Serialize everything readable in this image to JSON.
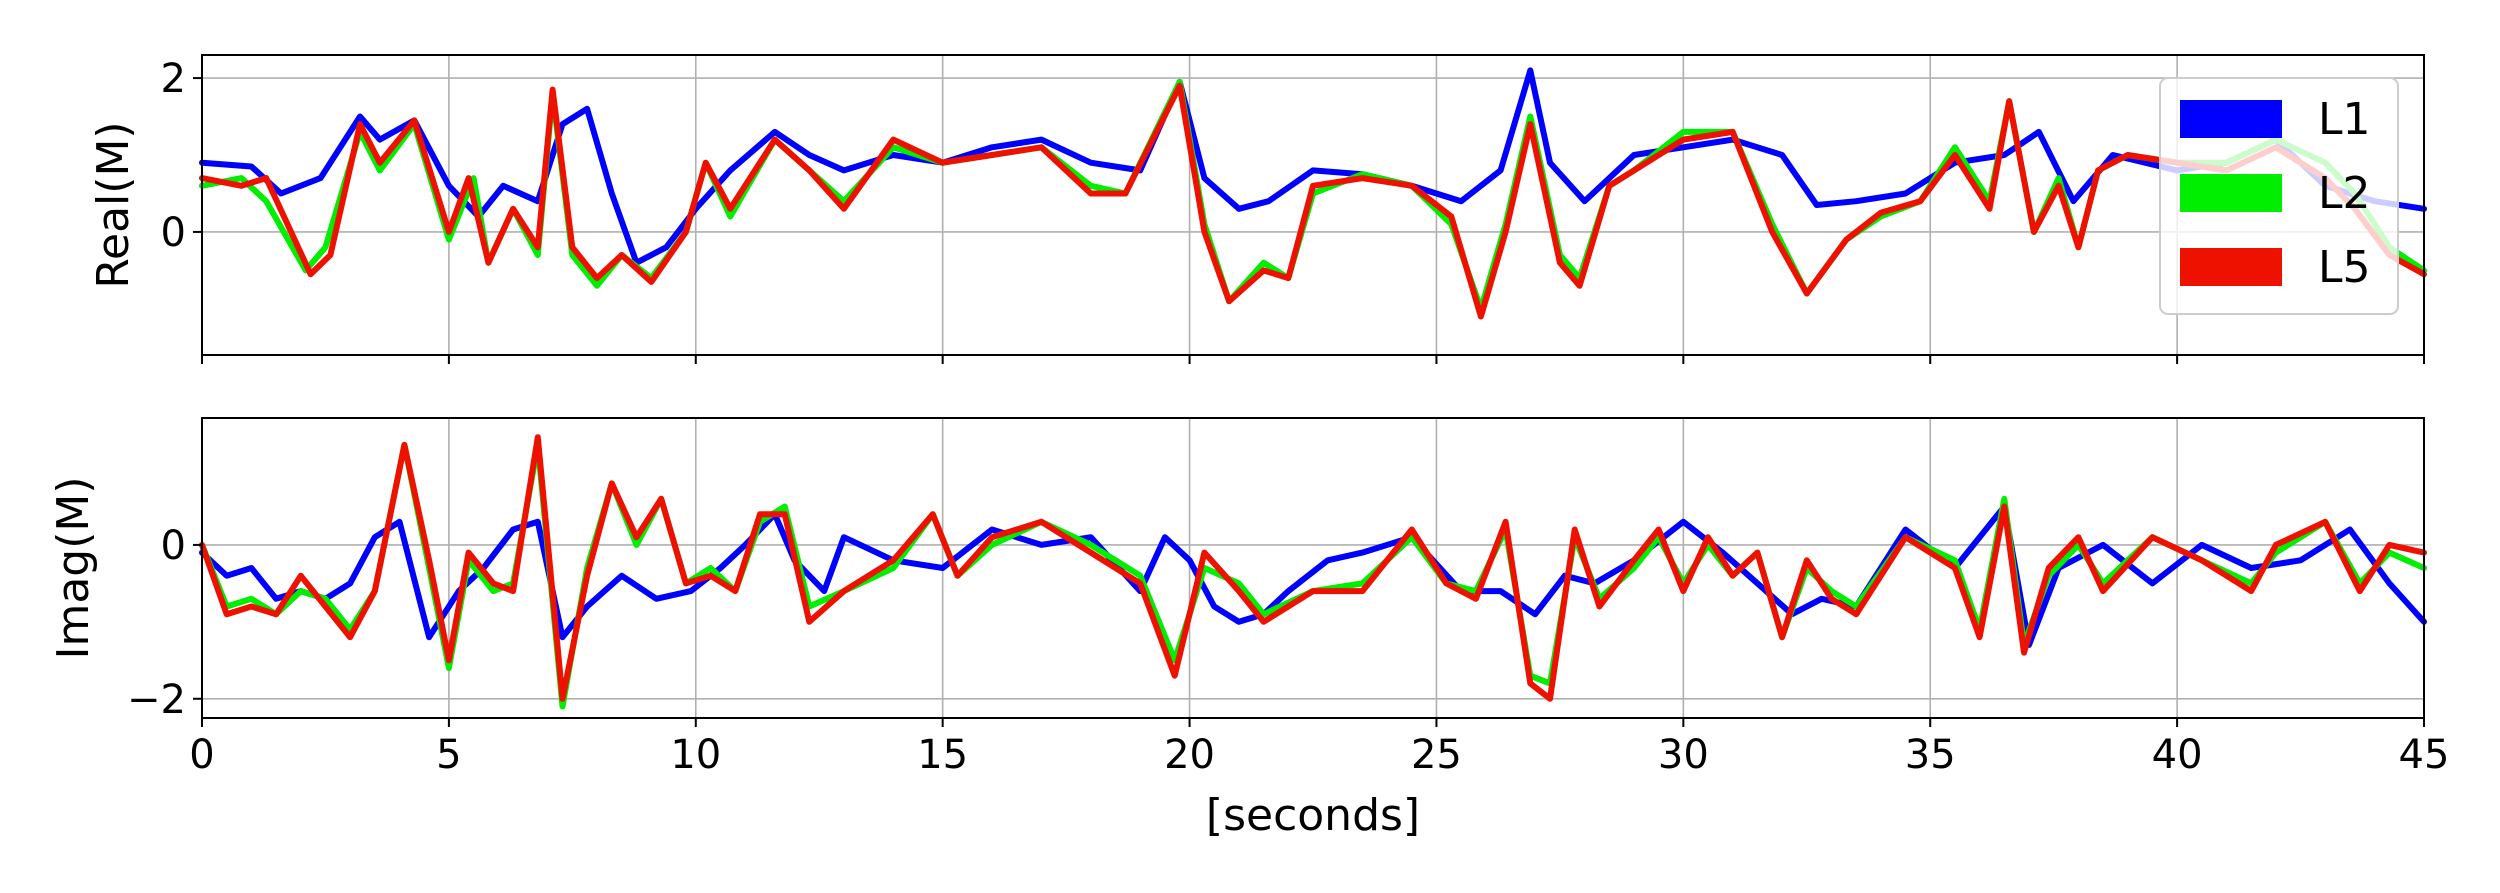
{
  "figure": {
    "xlabel": "[seconds]",
    "legend": {
      "location": "top-right",
      "entries": [
        {
          "label": "L1",
          "color": "#0000ff"
        },
        {
          "label": "L2",
          "color": "#00ee00"
        },
        {
          "label": "L5",
          "color": "#ee1100"
        }
      ]
    }
  },
  "chart_data": [
    {
      "type": "line",
      "ylabel": "Real(M)",
      "xlabel": "",
      "xlim": [
        0,
        45
      ],
      "ylim": [
        -1.6,
        2.3
      ],
      "xticks": [
        0,
        5,
        10,
        15,
        20,
        25,
        30,
        35,
        40,
        45
      ],
      "xtick_labels": [],
      "yticks": [
        0,
        2
      ],
      "ytick_labels": [
        "0",
        "2"
      ],
      "grid": true,
      "series": [
        {
          "name": "L1",
          "color": "#0000ff",
          "x": [
            0,
            1,
            1.6,
            2.4,
            3.2,
            3.6,
            4.3,
            5.0,
            5.6,
            6.1,
            6.8,
            7.3,
            7.8,
            8.3,
            8.8,
            9.4,
            10.0,
            10.7,
            11.6,
            12.3,
            13.0,
            14.0,
            15.0,
            16.0,
            17.0,
            18.0,
            19.0,
            19.8,
            20.3,
            21.0,
            21.6,
            22.5,
            23.5,
            24.5,
            25.5,
            26.3,
            26.9,
            27.3,
            28.0,
            29.0,
            30.0,
            31.0,
            32.0,
            32.7,
            33.5,
            34.5,
            35.5,
            36.5,
            37.2,
            37.9,
            38.7,
            40.0,
            41.0,
            42.0,
            43.0,
            44.0,
            45.0
          ],
          "y": [
            0.9,
            0.85,
            0.5,
            0.7,
            1.5,
            1.2,
            1.45,
            0.6,
            0.2,
            0.6,
            0.4,
            1.4,
            1.6,
            0.5,
            -0.4,
            -0.2,
            0.3,
            0.8,
            1.3,
            1.0,
            0.8,
            1.0,
            0.9,
            1.1,
            1.2,
            0.9,
            0.8,
            1.95,
            0.7,
            0.3,
            0.4,
            0.8,
            0.75,
            0.6,
            0.4,
            0.8,
            2.1,
            0.9,
            0.4,
            1.0,
            1.1,
            1.2,
            1.0,
            0.35,
            0.4,
            0.5,
            0.9,
            1.0,
            1.3,
            0.4,
            1.0,
            0.8,
            0.9,
            1.2,
            0.6,
            0.4,
            0.3
          ]
        },
        {
          "name": "L2",
          "color": "#00ee00",
          "x": [
            0,
            0.8,
            1.3,
            2.1,
            2.5,
            3.2,
            3.6,
            4.3,
            5.0,
            5.5,
            5.8,
            6.3,
            6.8,
            7.1,
            7.5,
            8.0,
            8.5,
            9.1,
            9.8,
            10.2,
            10.7,
            11.6,
            12.3,
            13.0,
            14.0,
            15.0,
            16.0,
            17.0,
            18.0,
            18.7,
            19.8,
            20.3,
            20.8,
            21.5,
            22.0,
            22.5,
            23.5,
            24.5,
            25.3,
            25.9,
            26.4,
            26.9,
            27.5,
            27.9,
            28.5,
            29.0,
            30.0,
            31.0,
            31.8,
            32.5,
            33.3,
            34.0,
            34.8,
            35.5,
            36.2,
            36.6,
            37.1,
            37.6,
            38.0,
            38.4,
            39.0,
            40.0,
            41.0,
            42.0,
            43.0,
            43.6,
            44.3,
            45.0
          ],
          "y": [
            0.6,
            0.7,
            0.4,
            -0.5,
            -0.2,
            1.3,
            0.8,
            1.4,
            -0.1,
            0.7,
            -0.4,
            0.3,
            -0.3,
            1.8,
            -0.3,
            -0.7,
            -0.3,
            -0.6,
            0.0,
            0.9,
            0.2,
            1.2,
            0.8,
            0.4,
            1.1,
            0.9,
            1.0,
            1.1,
            0.6,
            0.5,
            1.95,
            0.1,
            -0.9,
            -0.4,
            -0.6,
            0.5,
            0.75,
            0.6,
            0.1,
            -1.0,
            0.1,
            1.5,
            -0.3,
            -0.6,
            0.6,
            0.8,
            1.3,
            1.3,
            0.1,
            -0.8,
            -0.1,
            0.2,
            0.4,
            1.1,
            0.4,
            1.7,
            0.0,
            0.7,
            -0.2,
            0.8,
            1.0,
            0.9,
            0.9,
            1.2,
            0.9,
            0.5,
            -0.2,
            -0.5
          ]
        },
        {
          "name": "L5",
          "color": "#ee1100",
          "x": [
            0,
            0.8,
            1.3,
            2.2,
            2.6,
            3.2,
            3.6,
            4.3,
            5.0,
            5.4,
            5.8,
            6.3,
            6.8,
            7.1,
            7.5,
            8.0,
            8.5,
            9.1,
            9.8,
            10.2,
            10.7,
            11.6,
            12.3,
            13.0,
            14.0,
            15.0,
            16.0,
            17.0,
            18.0,
            18.7,
            19.8,
            20.3,
            20.8,
            21.5,
            22.0,
            22.5,
            23.5,
            24.5,
            25.3,
            25.9,
            26.4,
            26.9,
            27.5,
            27.9,
            28.5,
            29.0,
            30.0,
            31.0,
            31.8,
            32.5,
            33.3,
            34.0,
            34.8,
            35.5,
            36.2,
            36.6,
            37.1,
            37.6,
            38.0,
            38.4,
            39.0,
            40.0,
            41.0,
            42.0,
            43.0,
            43.6,
            44.3,
            45.0
          ],
          "y": [
            0.7,
            0.6,
            0.7,
            -0.55,
            -0.3,
            1.4,
            0.9,
            1.45,
            0.0,
            0.7,
            -0.4,
            0.3,
            -0.2,
            1.85,
            -0.2,
            -0.6,
            -0.3,
            -0.65,
            0.0,
            0.9,
            0.3,
            1.2,
            0.8,
            0.3,
            1.2,
            0.9,
            1.0,
            1.1,
            0.5,
            0.5,
            1.9,
            0.0,
            -0.9,
            -0.5,
            -0.6,
            0.6,
            0.7,
            0.6,
            0.2,
            -1.1,
            0.0,
            1.4,
            -0.4,
            -0.7,
            0.6,
            0.8,
            1.2,
            1.3,
            0.0,
            -0.8,
            -0.1,
            0.25,
            0.4,
            1.0,
            0.3,
            1.7,
            0.0,
            0.6,
            -0.2,
            0.8,
            1.0,
            0.9,
            0.8,
            1.1,
            0.7,
            0.3,
            -0.3,
            -0.55
          ]
        }
      ]
    },
    {
      "type": "line",
      "ylabel": "Imag(M)",
      "xlabel": "[seconds]",
      "xlim": [
        0,
        45
      ],
      "ylim": [
        -2.25,
        1.65
      ],
      "xticks": [
        0,
        5,
        10,
        15,
        20,
        25,
        30,
        35,
        40,
        45
      ],
      "xtick_labels": [
        "0",
        "5",
        "10",
        "15",
        "20",
        "25",
        "30",
        "35",
        "40",
        "45"
      ],
      "yticks": [
        -2,
        0
      ],
      "ytick_labels": [
        "−2",
        "0"
      ],
      "grid": true,
      "series": [
        {
          "name": "L1",
          "color": "#0000ff",
          "x": [
            0,
            0.5,
            1.0,
            1.5,
            2.0,
            2.5,
            3.0,
            3.5,
            4.0,
            4.6,
            5.2,
            5.7,
            6.3,
            6.8,
            7.3,
            7.8,
            8.5,
            9.2,
            9.9,
            10.5,
            11.0,
            11.6,
            12.0,
            12.6,
            13.0,
            14.0,
            15.0,
            16.0,
            17.0,
            18.0,
            19.0,
            19.5,
            20.0,
            20.5,
            21.0,
            21.5,
            22.0,
            22.8,
            23.5,
            24.5,
            25.5,
            26.3,
            27.0,
            27.6,
            28.2,
            29.0,
            30.0,
            30.8,
            31.5,
            32.2,
            32.8,
            33.5,
            34.5,
            35.5,
            36.5,
            37.0,
            37.6,
            38.5,
            39.5,
            40.5,
            41.5,
            42.5,
            43.5,
            44.3,
            45.0
          ],
          "y": [
            -0.1,
            -0.4,
            -0.3,
            -0.7,
            -0.6,
            -0.7,
            -0.5,
            0.1,
            0.3,
            -1.2,
            -0.6,
            -0.3,
            0.2,
            0.3,
            -1.2,
            -0.8,
            -0.4,
            -0.7,
            -0.6,
            -0.3,
            0.0,
            0.4,
            -0.2,
            -0.6,
            0.1,
            -0.2,
            -0.3,
            0.2,
            0.0,
            0.1,
            -0.6,
            0.1,
            -0.2,
            -0.8,
            -1.0,
            -0.9,
            -0.6,
            -0.2,
            -0.1,
            0.1,
            -0.6,
            -0.6,
            -0.9,
            -0.4,
            -0.5,
            -0.2,
            0.3,
            -0.1,
            -0.5,
            -0.9,
            -0.7,
            -0.8,
            0.2,
            -0.3,
            0.5,
            -1.3,
            -0.3,
            0.0,
            -0.5,
            0.0,
            -0.3,
            -0.2,
            0.2,
            -0.5,
            -1.0
          ]
        },
        {
          "name": "L2",
          "color": "#00ee00",
          "x": [
            0,
            0.5,
            1.0,
            1.5,
            2.0,
            2.5,
            3.0,
            3.5,
            4.1,
            4.6,
            5.0,
            5.4,
            5.9,
            6.3,
            6.8,
            7.3,
            7.8,
            8.3,
            8.8,
            9.3,
            9.8,
            10.3,
            10.8,
            11.3,
            11.8,
            12.3,
            13.0,
            14.0,
            14.8,
            15.3,
            16.0,
            17.0,
            18.0,
            19.0,
            19.7,
            20.3,
            21.0,
            21.5,
            22.5,
            23.5,
            24.5,
            25.2,
            25.8,
            26.4,
            26.9,
            27.3,
            27.8,
            28.3,
            29.0,
            29.5,
            30.0,
            30.5,
            31.0,
            31.5,
            32.0,
            32.5,
            33.0,
            33.5,
            34.5,
            35.5,
            36.0,
            36.5,
            36.9,
            37.4,
            38.0,
            38.5,
            39.5,
            40.5,
            41.5,
            42.0,
            43.0,
            43.7,
            44.3,
            45.0
          ],
          "y": [
            0.0,
            -0.8,
            -0.7,
            -0.9,
            -0.6,
            -0.7,
            -1.1,
            -0.6,
            1.3,
            -0.3,
            -1.6,
            -0.2,
            -0.6,
            -0.5,
            1.3,
            -2.1,
            -0.3,
            0.8,
            0.0,
            0.6,
            -0.5,
            -0.3,
            -0.6,
            0.3,
            0.5,
            -0.8,
            -0.6,
            -0.3,
            0.4,
            -0.4,
            0.0,
            0.3,
            0.0,
            -0.4,
            -1.5,
            -0.3,
            -0.5,
            -0.9,
            -0.6,
            -0.5,
            0.1,
            -0.5,
            -0.6,
            0.2,
            -1.7,
            -1.8,
            0.1,
            -0.7,
            -0.3,
            0.1,
            -0.5,
            0.0,
            -0.4,
            -0.1,
            -1.2,
            -0.3,
            -0.6,
            -0.8,
            0.1,
            -0.2,
            -1.1,
            0.6,
            -1.3,
            -0.4,
            0.0,
            -0.5,
            0.1,
            -0.2,
            -0.5,
            -0.1,
            0.3,
            -0.5,
            -0.1,
            -0.3
          ]
        },
        {
          "name": "L5",
          "color": "#ee1100",
          "x": [
            0,
            0.5,
            1.0,
            1.5,
            2.0,
            2.5,
            3.0,
            3.5,
            4.1,
            4.6,
            5.0,
            5.4,
            5.9,
            6.3,
            6.8,
            7.3,
            7.8,
            8.3,
            8.8,
            9.3,
            9.8,
            10.3,
            10.8,
            11.3,
            11.8,
            12.3,
            13.0,
            14.0,
            14.8,
            15.3,
            16.0,
            17.0,
            18.0,
            19.0,
            19.7,
            20.3,
            21.0,
            21.5,
            22.5,
            23.5,
            24.5,
            25.2,
            25.8,
            26.4,
            26.9,
            27.3,
            27.8,
            28.3,
            29.0,
            29.5,
            30.0,
            30.5,
            31.0,
            31.5,
            32.0,
            32.5,
            33.0,
            33.5,
            34.5,
            35.5,
            36.0,
            36.5,
            36.9,
            37.4,
            38.0,
            38.5,
            39.5,
            40.5,
            41.5,
            42.0,
            43.0,
            43.7,
            44.3,
            45.0
          ],
          "y": [
            0.0,
            -0.9,
            -0.8,
            -0.9,
            -0.4,
            -0.8,
            -1.2,
            -0.6,
            1.3,
            -0.2,
            -1.5,
            -0.1,
            -0.5,
            -0.6,
            1.4,
            -2.0,
            -0.4,
            0.8,
            0.1,
            0.6,
            -0.5,
            -0.4,
            -0.6,
            0.4,
            0.4,
            -1.0,
            -0.6,
            -0.2,
            0.4,
            -0.4,
            0.1,
            0.3,
            -0.1,
            -0.5,
            -1.7,
            -0.1,
            -0.6,
            -1.0,
            -0.6,
            -0.6,
            0.2,
            -0.5,
            -0.7,
            0.3,
            -1.8,
            -2.0,
            0.2,
            -0.8,
            -0.2,
            0.2,
            -0.6,
            0.1,
            -0.4,
            -0.1,
            -1.2,
            -0.2,
            -0.7,
            -0.9,
            0.1,
            -0.3,
            -1.2,
            0.5,
            -1.4,
            -0.3,
            0.1,
            -0.6,
            0.1,
            -0.2,
            -0.6,
            0.0,
            0.3,
            -0.6,
            0.0,
            -0.1
          ]
        }
      ]
    }
  ]
}
